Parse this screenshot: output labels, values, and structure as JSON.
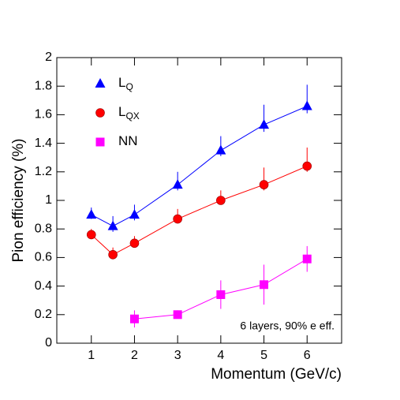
{
  "chart_data": {
    "type": "line",
    "x_label": "Momentum (GeV/c)",
    "y_label": "Pion efficiency (%)",
    "annotation": "6 layers, 90% e eff.",
    "xlim": [
      0.2,
      6.8
    ],
    "ylim": [
      0,
      2
    ],
    "xticks": [
      1,
      2,
      3,
      4,
      5,
      6
    ],
    "yticks": [
      0,
      0.2,
      0.4,
      0.6,
      0.8,
      1,
      1.2,
      1.4,
      1.6,
      1.8,
      2
    ],
    "legend": "top-left",
    "series": [
      {
        "name": "L",
        "name_sub": "Q",
        "marker": "triangle",
        "color": "#0000ff",
        "x": [
          1,
          1.5,
          2,
          3,
          4,
          5,
          6
        ],
        "values": [
          0.9,
          0.82,
          0.9,
          1.11,
          1.35,
          1.53,
          1.66
        ],
        "errors_high": [
          0.05,
          0.07,
          0.07,
          0.09,
          0.1,
          0.14,
          0.15
        ],
        "errors_low": [
          0.03,
          0.04,
          0.04,
          0.04,
          0.04,
          0.05,
          0.05
        ]
      },
      {
        "name": "L",
        "name_sub": "QX",
        "marker": "circle",
        "color": "#ff0000",
        "x": [
          1,
          1.5,
          2,
          3,
          4,
          5,
          6
        ],
        "values": [
          0.76,
          0.62,
          0.7,
          0.87,
          1.0,
          1.11,
          1.24
        ],
        "errors_high": [
          0.04,
          0.05,
          0.05,
          0.07,
          0.07,
          0.12,
          0.13
        ],
        "errors_low": [
          0.03,
          0.03,
          0.03,
          0.03,
          0.03,
          0.04,
          0.04
        ]
      },
      {
        "name": "NN",
        "marker": "square",
        "color": "#ff00ff",
        "x": [
          2,
          3,
          4,
          5,
          6
        ],
        "values": [
          0.17,
          0.2,
          0.34,
          0.41,
          0.59
        ],
        "errors_high": [
          0.06,
          0.03,
          0.1,
          0.14,
          0.09
        ],
        "errors_low": [
          0.06,
          0.02,
          0.1,
          0.14,
          0.09
        ]
      }
    ]
  }
}
